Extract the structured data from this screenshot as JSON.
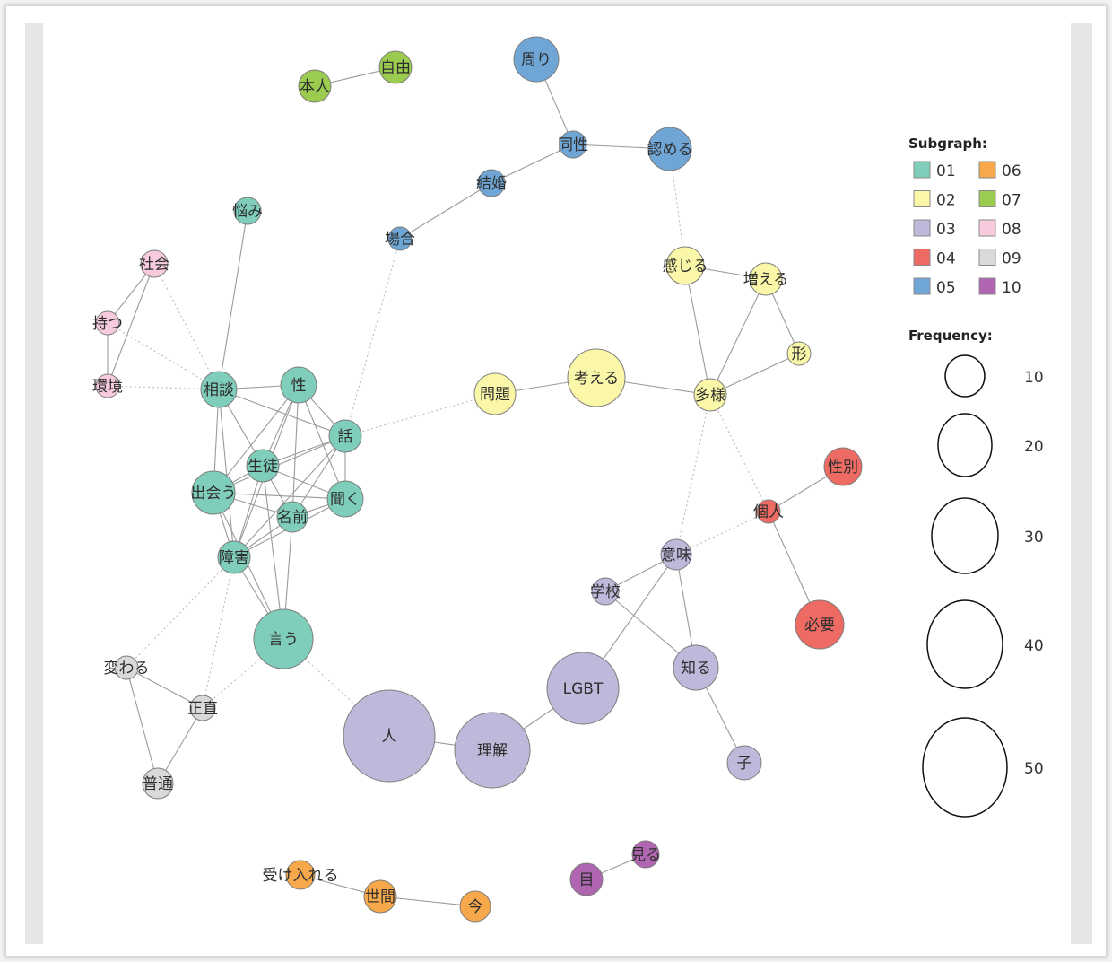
{
  "legend": {
    "subgraph_title": "Subgraph:",
    "frequency_title": "Frequency:",
    "subgraphs": [
      {
        "id": "01",
        "color": "#7fcdbb"
      },
      {
        "id": "02",
        "color": "#fbf7a8"
      },
      {
        "id": "03",
        "color": "#bfb8da"
      },
      {
        "id": "04",
        "color": "#ee6b63"
      },
      {
        "id": "05",
        "color": "#6fa6d6"
      },
      {
        "id": "06",
        "color": "#f6a84a"
      },
      {
        "id": "07",
        "color": "#9bcb4f"
      },
      {
        "id": "08",
        "color": "#f7cadd"
      },
      {
        "id": "09",
        "color": "#d9d9d9"
      },
      {
        "id": "10",
        "color": "#b065b0"
      }
    ],
    "frequencies": [
      10,
      20,
      30,
      40,
      50
    ]
  },
  "nodes": [
    {
      "id": "jiyu",
      "label": "自由",
      "group": "07",
      "freq": 7
    },
    {
      "id": "honnin",
      "label": "本人",
      "group": "07",
      "freq": 7
    },
    {
      "id": "mawari",
      "label": "周り",
      "group": "05",
      "freq": 13
    },
    {
      "id": "dousei",
      "label": "同性",
      "group": "05",
      "freq": 5
    },
    {
      "id": "mitomeru",
      "label": "認める",
      "group": "05",
      "freq": 12
    },
    {
      "id": "kekkon",
      "label": "結婚",
      "group": "05",
      "freq": 5
    },
    {
      "id": "baai",
      "label": "場合",
      "group": "05",
      "freq": 4
    },
    {
      "id": "nayami",
      "label": "悩み",
      "group": "01",
      "freq": 5
    },
    {
      "id": "shakai",
      "label": "社会",
      "group": "08",
      "freq": 5
    },
    {
      "id": "motsu",
      "label": "持つ",
      "group": "08",
      "freq": 4
    },
    {
      "id": "kankyou",
      "label": "環境",
      "group": "08",
      "freq": 4
    },
    {
      "id": "soudan",
      "label": "相談",
      "group": "01",
      "freq": 8
    },
    {
      "id": "sei",
      "label": "性",
      "group": "01",
      "freq": 8
    },
    {
      "id": "hanashi",
      "label": "話",
      "group": "01",
      "freq": 7
    },
    {
      "id": "seito",
      "label": "生徒",
      "group": "01",
      "freq": 7
    },
    {
      "id": "deau",
      "label": "出会う",
      "group": "01",
      "freq": 11
    },
    {
      "id": "kiku",
      "label": "聞く",
      "group": "01",
      "freq": 8
    },
    {
      "id": "namae",
      "label": "名前",
      "group": "01",
      "freq": 6
    },
    {
      "id": "shougai",
      "label": "障害",
      "group": "01",
      "freq": 7
    },
    {
      "id": "iu",
      "label": "言う",
      "group": "01",
      "freq": 19
    },
    {
      "id": "mondai",
      "label": "問題",
      "group": "02",
      "freq": 10
    },
    {
      "id": "kangaeru",
      "label": "考える",
      "group": "02",
      "freq": 18
    },
    {
      "id": "kanjiru",
      "label": "感じる",
      "group": "02",
      "freq": 9
    },
    {
      "id": "fueru",
      "label": "増える",
      "group": "02",
      "freq": 7
    },
    {
      "id": "katachi",
      "label": "形",
      "group": "02",
      "freq": 4
    },
    {
      "id": "tayou",
      "label": "多様",
      "group": "02",
      "freq": 7
    },
    {
      "id": "seibetsu",
      "label": "性別",
      "group": "04",
      "freq": 9
    },
    {
      "id": "kojin",
      "label": "個人",
      "group": "04",
      "freq": 4
    },
    {
      "id": "hitsuyou",
      "label": "必要",
      "group": "04",
      "freq": 14
    },
    {
      "id": "imi",
      "label": "意味",
      "group": "03",
      "freq": 6
    },
    {
      "id": "gakkou",
      "label": "学校",
      "group": "03",
      "freq": 5
    },
    {
      "id": "shiru",
      "label": "知る",
      "group": "03",
      "freq": 12
    },
    {
      "id": "lgbt",
      "label": "LGBT",
      "group": "03",
      "freq": 33
    },
    {
      "id": "hito",
      "label": "人",
      "group": "03",
      "freq": 55
    },
    {
      "id": "rikai",
      "label": "理解",
      "group": "03",
      "freq": 36
    },
    {
      "id": "ko",
      "label": "子",
      "group": "03",
      "freq": 8
    },
    {
      "id": "kawaru",
      "label": "変わる",
      "group": "09",
      "freq": 5
    },
    {
      "id": "shoujiki",
      "label": "正直",
      "group": "09",
      "freq": 5
    },
    {
      "id": "futsuu",
      "label": "普通",
      "group": "09",
      "freq": 6
    },
    {
      "id": "ukeireru",
      "label": "受け入れる",
      "group": "06",
      "freq": 6
    },
    {
      "id": "seken",
      "label": "世間",
      "group": "06",
      "freq": 7
    },
    {
      "id": "ima",
      "label": "今",
      "group": "06",
      "freq": 6
    },
    {
      "id": "me",
      "label": "目",
      "group": "10",
      "freq": 7
    },
    {
      "id": "miru",
      "label": "見る",
      "group": "10",
      "freq": 5
    }
  ],
  "edges": [
    {
      "s": "honnin",
      "t": "jiyu",
      "style": "solid"
    },
    {
      "s": "mawari",
      "t": "dousei",
      "style": "solid"
    },
    {
      "s": "dousei",
      "t": "mitomeru",
      "style": "solid"
    },
    {
      "s": "dousei",
      "t": "kekkon",
      "style": "solid"
    },
    {
      "s": "kekkon",
      "t": "baai",
      "style": "solid"
    },
    {
      "s": "mitomeru",
      "t": "kanjiru",
      "style": "dotted"
    },
    {
      "s": "baai",
      "t": "hanashi",
      "style": "dotted"
    },
    {
      "s": "nayami",
      "t": "soudan",
      "style": "solid"
    },
    {
      "s": "shakai",
      "t": "motsu",
      "style": "solid"
    },
    {
      "s": "shakai",
      "t": "kankyou",
      "style": "solid"
    },
    {
      "s": "motsu",
      "t": "kankyou",
      "style": "solid"
    },
    {
      "s": "shakai",
      "t": "soudan",
      "style": "dotted"
    },
    {
      "s": "motsu",
      "t": "soudan",
      "style": "dotted"
    },
    {
      "s": "kankyou",
      "t": "soudan",
      "style": "dotted"
    },
    {
      "s": "soudan",
      "t": "sei",
      "style": "solid"
    },
    {
      "s": "soudan",
      "t": "hanashi",
      "style": "solid"
    },
    {
      "s": "soudan",
      "t": "seito",
      "style": "solid"
    },
    {
      "s": "soudan",
      "t": "deau",
      "style": "solid"
    },
    {
      "s": "soudan",
      "t": "shougai",
      "style": "solid"
    },
    {
      "s": "sei",
      "t": "hanashi",
      "style": "solid"
    },
    {
      "s": "sei",
      "t": "seito",
      "style": "solid"
    },
    {
      "s": "sei",
      "t": "kiku",
      "style": "solid"
    },
    {
      "s": "sei",
      "t": "namae",
      "style": "solid"
    },
    {
      "s": "sei",
      "t": "deau",
      "style": "solid"
    },
    {
      "s": "sei",
      "t": "shougai",
      "style": "solid"
    },
    {
      "s": "hanashi",
      "t": "seito",
      "style": "solid"
    },
    {
      "s": "hanashi",
      "t": "kiku",
      "style": "solid"
    },
    {
      "s": "hanashi",
      "t": "deau",
      "style": "solid"
    },
    {
      "s": "hanashi",
      "t": "namae",
      "style": "solid"
    },
    {
      "s": "hanashi",
      "t": "shougai",
      "style": "solid"
    },
    {
      "s": "seito",
      "t": "deau",
      "style": "solid"
    },
    {
      "s": "seito",
      "t": "kiku",
      "style": "solid"
    },
    {
      "s": "seito",
      "t": "namae",
      "style": "solid"
    },
    {
      "s": "seito",
      "t": "shougai",
      "style": "solid"
    },
    {
      "s": "seito",
      "t": "iu",
      "style": "solid"
    },
    {
      "s": "deau",
      "t": "kiku",
      "style": "solid"
    },
    {
      "s": "deau",
      "t": "namae",
      "style": "solid"
    },
    {
      "s": "deau",
      "t": "shougai",
      "style": "solid"
    },
    {
      "s": "deau",
      "t": "iu",
      "style": "solid"
    },
    {
      "s": "kiku",
      "t": "namae",
      "style": "solid"
    },
    {
      "s": "kiku",
      "t": "shougai",
      "style": "solid"
    },
    {
      "s": "namae",
      "t": "shougai",
      "style": "solid"
    },
    {
      "s": "namae",
      "t": "iu",
      "style": "solid"
    },
    {
      "s": "shougai",
      "t": "iu",
      "style": "solid"
    },
    {
      "s": "hanashi",
      "t": "mondai",
      "style": "dotted"
    },
    {
      "s": "mondai",
      "t": "kangaeru",
      "style": "solid"
    },
    {
      "s": "kangaeru",
      "t": "tayou",
      "style": "solid"
    },
    {
      "s": "kanjiru",
      "t": "fueru",
      "style": "solid"
    },
    {
      "s": "kanjiru",
      "t": "tayou",
      "style": "solid"
    },
    {
      "s": "fueru",
      "t": "tayou",
      "style": "solid"
    },
    {
      "s": "fueru",
      "t": "katachi",
      "style": "solid"
    },
    {
      "s": "tayou",
      "t": "katachi",
      "style": "solid"
    },
    {
      "s": "tayou",
      "t": "kojin",
      "style": "dotted"
    },
    {
      "s": "tayou",
      "t": "imi",
      "style": "dotted"
    },
    {
      "s": "kojin",
      "t": "seibetsu",
      "style": "solid"
    },
    {
      "s": "kojin",
      "t": "hitsuyou",
      "style": "solid"
    },
    {
      "s": "imi",
      "t": "kojin",
      "style": "dotted"
    },
    {
      "s": "imi",
      "t": "gakkou",
      "style": "solid"
    },
    {
      "s": "imi",
      "t": "shiru",
      "style": "solid"
    },
    {
      "s": "imi",
      "t": "lgbt",
      "style": "solid"
    },
    {
      "s": "gakkou",
      "t": "shiru",
      "style": "solid"
    },
    {
      "s": "shiru",
      "t": "ko",
      "style": "solid"
    },
    {
      "s": "lgbt",
      "t": "rikai",
      "style": "solid"
    },
    {
      "s": "rikai",
      "t": "hito",
      "style": "solid"
    },
    {
      "s": "hito",
      "t": "iu",
      "style": "dotted"
    },
    {
      "s": "shougai",
      "t": "kawaru",
      "style": "dotted"
    },
    {
      "s": "shougai",
      "t": "shoujiki",
      "style": "dotted"
    },
    {
      "s": "iu",
      "t": "shoujiki",
      "style": "dotted"
    },
    {
      "s": "kawaru",
      "t": "shoujiki",
      "style": "solid"
    },
    {
      "s": "kawaru",
      "t": "futsuu",
      "style": "solid"
    },
    {
      "s": "shoujiki",
      "t": "futsuu",
      "style": "solid"
    },
    {
      "s": "ukeireru",
      "t": "seken",
      "style": "solid"
    },
    {
      "s": "seken",
      "t": "ima",
      "style": "solid"
    },
    {
      "s": "me",
      "t": "miru",
      "style": "solid"
    }
  ]
}
